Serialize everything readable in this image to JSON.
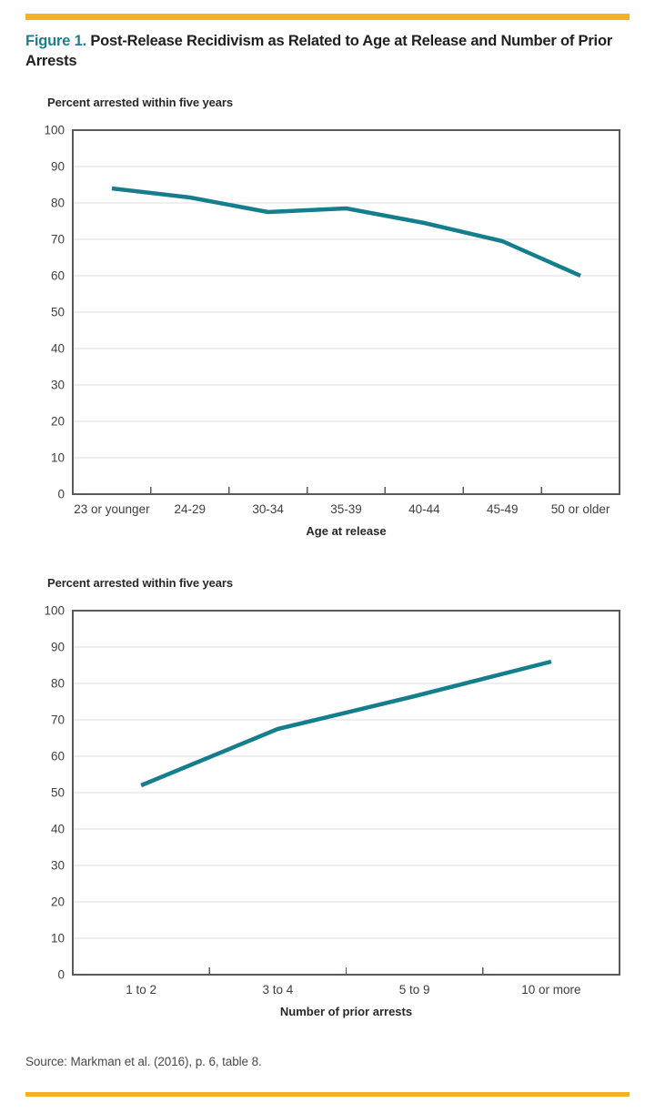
{
  "page": {
    "title_prefix": "Figure 1.",
    "title_rest": "Post-Release Recidivism as Related to Age at Release and Number of Prior Arrests",
    "source": "Source: Markman et al. (2016), p. 6, table 8.",
    "accent_color": "#f9b022",
    "figure_label_color": "#1a7f8f"
  },
  "chart_data": [
    {
      "type": "line",
      "title": "Percent arrested within five years",
      "xlabel": "Age at release",
      "categories": [
        "23 or younger",
        "24-29",
        "30-34",
        "35-39",
        "40-44",
        "45-49",
        "50 or older"
      ],
      "values": [
        84,
        81.5,
        77.5,
        78.5,
        74.5,
        69.5,
        60
      ],
      "ylim": [
        0,
        100
      ],
      "ytick_step": 10,
      "grid": true,
      "legend": "none",
      "line_color": "#147e8d"
    },
    {
      "type": "line",
      "title": "Percent arrested within five years",
      "xlabel": "Number of prior arrests",
      "categories": [
        "1 to 2",
        "3 to 4",
        "5 to 9",
        "10 or more"
      ],
      "values": [
        52,
        67.5,
        76.5,
        86
      ],
      "ylim": [
        0,
        100
      ],
      "ytick_step": 10,
      "grid": true,
      "legend": "none",
      "line_color": "#147e8d"
    }
  ],
  "style": {
    "grid_color": "#dcdcdc",
    "border_color": "#58595b",
    "tick_color": "#58595b",
    "tick_label_color": "#3f3f41",
    "line_width": 4.5
  }
}
